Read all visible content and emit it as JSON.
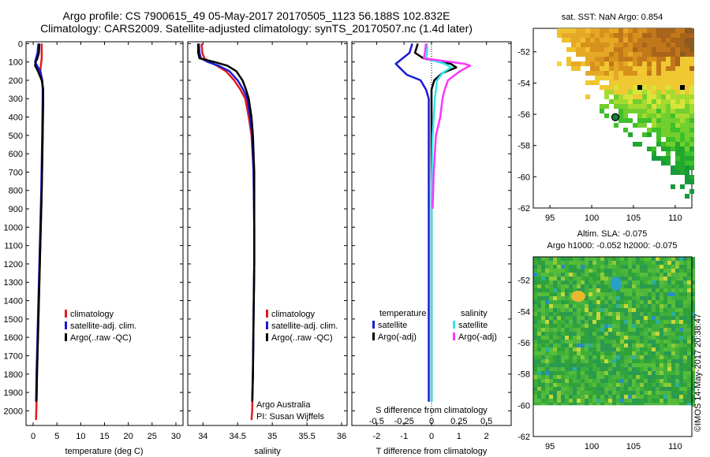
{
  "header": {
    "line1": "Argo profile: CS 7900615_49 05-May-2017 20170505_1123 56.188S 102.832E",
    "line2": "Climatology: CARS2009. Satellite-adjusted climatology: synTS_20170507.nc (1.4d later)"
  },
  "colors": {
    "climatology": "#e41a1c",
    "satellite": "#1a1ad6",
    "argo": "#000000",
    "satellite_s": "#33e6e6",
    "argo_s": "#ff33ff"
  },
  "depth_axis": {
    "ylim": [
      2080,
      -10
    ],
    "ticks": [
      "0",
      "100",
      "200",
      "300",
      "400",
      "500",
      "600",
      "700",
      "800",
      "900",
      "1000",
      "1100",
      "1200",
      "1300",
      "1400",
      "1500",
      "1600",
      "1700",
      "1800",
      "1900",
      "2000"
    ]
  },
  "panels": {
    "temperature": {
      "xlabel": "temperature (deg C)",
      "xlim": [
        -1.5,
        31.5
      ],
      "ticks": [
        "0",
        "5",
        "10",
        "15",
        "20",
        "25",
        "30"
      ],
      "legend": [
        "climatology",
        "satellite-adj. clim.",
        "Argo(..raw -QC)"
      ]
    },
    "salinity": {
      "xlabel": "salinity",
      "xlim": [
        33.78,
        36.08
      ],
      "ticks": [
        "34",
        "34.5",
        "35",
        "35.5",
        "36"
      ],
      "legend": [
        "climatology",
        "satellite-adj. clim.",
        "Argo(..raw -QC)"
      ],
      "note_line1": "Argo Australia",
      "note_line2": "PI: Susan Wijffels"
    },
    "difference": {
      "top_label": "S difference from climatology",
      "s_ticks": [
        "-0.5",
        "-0.25",
        "0",
        "0.25",
        "0.5"
      ],
      "xlabel": "T difference from climatology",
      "t_ticks": [
        "-2",
        "-1",
        "0",
        "1",
        "2"
      ],
      "xlim": [
        -2.9,
        2.9
      ],
      "legend_t_title": "temperature",
      "legend_s_title": "salinity",
      "legend_t": [
        "satellite",
        "Argo(-adj)"
      ],
      "legend_s": [
        "satellite",
        "Argo(-adj)"
      ]
    }
  },
  "maps": {
    "sst": {
      "title": "sat. SST: NaN Argo: 0.854",
      "y_ticks": [
        "-52",
        "-54",
        "-56",
        "-58",
        "-60",
        "-62"
      ],
      "x_ticks": [
        "95",
        "100",
        "105",
        "110"
      ]
    },
    "sla": {
      "title1": "Altim. SLA: -0.075",
      "title2": "Argo h1000: -0.052 h2000: -0.075",
      "y_ticks": [
        "-52",
        "-54",
        "-56",
        "-58",
        "-60",
        "-62"
      ],
      "x_ticks": [
        "95",
        "100",
        "105",
        "110"
      ]
    },
    "credit": "©IMOS 14-May-2017 20:38:47",
    "lon_range": [
      93,
      112
    ],
    "lat_range": [
      -62,
      -50.5
    ],
    "argo_position": {
      "lon": 102.832,
      "lat": -56.188
    }
  },
  "chart_data": [
    {
      "type": "line",
      "title": "",
      "xlabel": "temperature (deg C)",
      "ylabel": "",
      "xlim": [
        -1.5,
        31.5
      ],
      "ylim": [
        2080,
        -10
      ],
      "series": [
        {
          "name": "climatology",
          "x": [
            1.8,
            1.8,
            1.8,
            1.7,
            1.6,
            1.5,
            1.9,
            2.1,
            2.1,
            2.0,
            1.8,
            1.6,
            1.4,
            1.2,
            1.0,
            0.8,
            0.7,
            0.6
          ],
          "y": [
            0,
            50,
            80,
            100,
            120,
            150,
            200,
            250,
            300,
            500,
            800,
            1000,
            1200,
            1400,
            1600,
            1800,
            1950,
            2050
          ]
        },
        {
          "name": "satellite-adj. clim.",
          "x": [
            1.1,
            0.9,
            0.6,
            0.4,
            0.8,
            1.5,
            1.9,
            2.0,
            2.0,
            1.9,
            1.7,
            1.5,
            1.3,
            1.1,
            0.9,
            0.7,
            0.6
          ],
          "y": [
            0,
            50,
            80,
            100,
            120,
            150,
            200,
            250,
            300,
            500,
            800,
            1000,
            1200,
            1400,
            1600,
            1800,
            1950
          ]
        },
        {
          "name": "Argo(..raw -QC)",
          "x": [
            1.3,
            1.2,
            0.9,
            0.5,
            0.4,
            1.0,
            1.8,
            2.1,
            2.1,
            2.0,
            1.8,
            1.6,
            1.4,
            1.2,
            1.0,
            0.8,
            0.7
          ],
          "y": [
            0,
            50,
            80,
            100,
            120,
            150,
            200,
            250,
            300,
            500,
            800,
            1000,
            1200,
            1400,
            1600,
            1800,
            1950
          ]
        }
      ]
    },
    {
      "type": "line",
      "title": "",
      "xlabel": "salinity",
      "ylabel": "",
      "xlim": [
        33.78,
        36.08
      ],
      "ylim": [
        2080,
        -10
      ],
      "series": [
        {
          "name": "climatology",
          "x": [
            33.98,
            33.99,
            34.02,
            34.1,
            34.2,
            34.33,
            34.45,
            34.54,
            34.61,
            34.66,
            34.7,
            34.73,
            34.74,
            34.74,
            34.73,
            34.72,
            34.71,
            34.7
          ],
          "y": [
            0,
            50,
            80,
            100,
            120,
            150,
            200,
            250,
            300,
            400,
            500,
            700,
            1000,
            1200,
            1500,
            1800,
            2000,
            2050
          ]
        },
        {
          "name": "satellite-adj. clim.",
          "x": [
            33.94,
            33.95,
            33.97,
            34.07,
            34.22,
            34.38,
            34.5,
            34.58,
            34.64,
            34.68,
            34.71,
            34.73,
            34.74,
            34.74,
            34.73,
            34.72,
            34.71
          ],
          "y": [
            0,
            50,
            80,
            100,
            120,
            150,
            200,
            250,
            300,
            400,
            500,
            700,
            1000,
            1200,
            1500,
            1800,
            1950
          ]
        },
        {
          "name": "Argo(..raw -QC)",
          "x": [
            33.93,
            33.93,
            33.95,
            34.16,
            34.35,
            34.48,
            34.57,
            34.62,
            34.66,
            34.7,
            34.72,
            34.74,
            34.74,
            34.74,
            34.73,
            34.72,
            34.71
          ],
          "y": [
            0,
            50,
            80,
            100,
            120,
            150,
            200,
            250,
            300,
            400,
            500,
            700,
            1000,
            1200,
            1500,
            1800,
            1950
          ]
        }
      ]
    },
    {
      "type": "line",
      "title": "",
      "xlabel": "T difference from climatology",
      "ylabel": "",
      "xlim": [
        -2.9,
        2.9
      ],
      "ylim": [
        2080,
        -10
      ],
      "series": [
        {
          "name": "temperature satellite",
          "x": [
            -0.7,
            -0.8,
            -1.3,
            -1.1,
            -0.9,
            -0.4,
            -0.2,
            -0.1,
            -0.1,
            -0.1,
            -0.1,
            -0.1,
            -0.1,
            -0.1,
            -0.1,
            -0.1
          ],
          "y": [
            0,
            50,
            110,
            140,
            170,
            200,
            250,
            300,
            500,
            800,
            1000,
            1200,
            1400,
            1600,
            1800,
            1950
          ]
        },
        {
          "name": "temperature Argo(-adj)",
          "x": [
            -0.5,
            -0.6,
            -0.3,
            0.7,
            0.9,
            0.4,
            0.1,
            0.0,
            0.0,
            0.0,
            0.0,
            0.0,
            0.0,
            0.0,
            0.0,
            0.0
          ],
          "y": [
            0,
            50,
            80,
            110,
            130,
            160,
            200,
            250,
            300,
            500,
            800,
            1000,
            1200,
            1400,
            1600,
            1950
          ]
        },
        {
          "name": "salinity satellite",
          "x": [
            -0.04,
            -0.04,
            -0.05,
            0.12,
            0.18,
            0.1,
            0.05,
            0.04,
            0.03,
            0.02,
            0.01,
            0.0,
            0.0,
            0.0
          ],
          "y": [
            0,
            50,
            80,
            110,
            130,
            160,
            200,
            250,
            300,
            400,
            500,
            800,
            1200,
            1950
          ]
        },
        {
          "name": "salinity Argo(-adj)",
          "x": [
            -0.05,
            -0.06,
            -0.07,
            0.3,
            0.35,
            0.26,
            0.15,
            0.12,
            0.1,
            0.08,
            0.04,
            0.02,
            0.01
          ],
          "y": [
            0,
            50,
            80,
            110,
            120,
            150,
            200,
            250,
            300,
            400,
            500,
            700,
            900
          ]
        }
      ]
    }
  ]
}
